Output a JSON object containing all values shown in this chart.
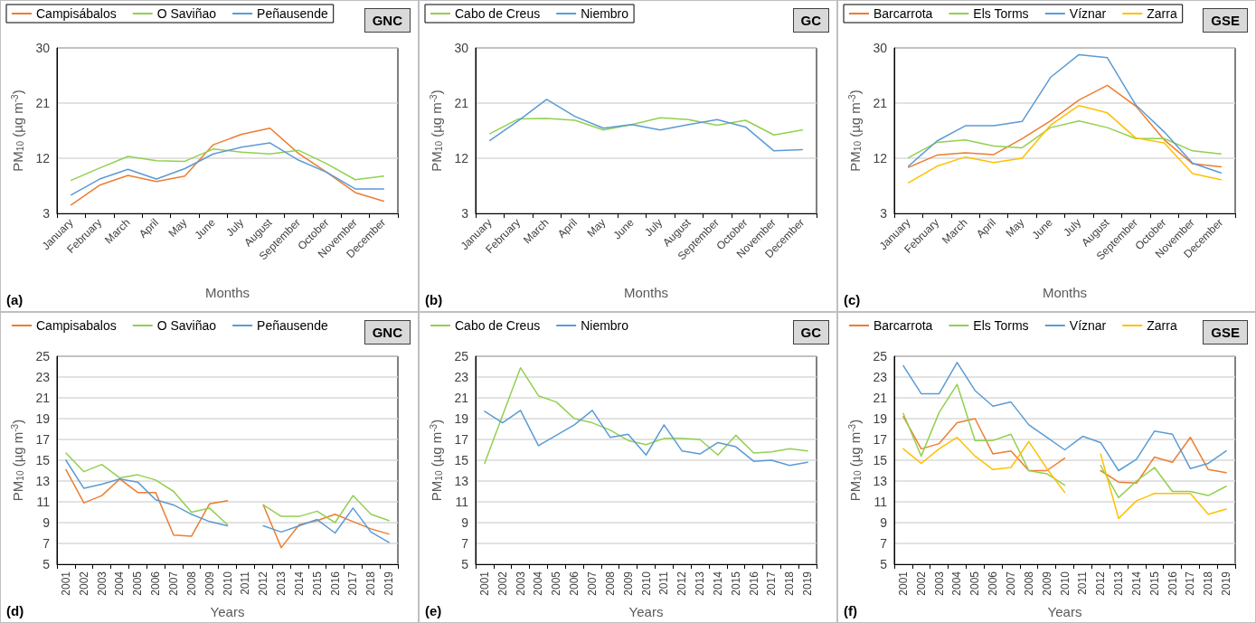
{
  "chart_data": [
    {
      "type": "line",
      "xlabel": "Months",
      "ylabel": "PM$_{10}$ (µg m$^{-3}$)",
      "annotations": [
        "(a)",
        "GNC"
      ],
      "categories": [
        "January",
        "February",
        "March",
        "April",
        "May",
        "June",
        "July",
        "August",
        "September",
        "October",
        "November",
        "December"
      ],
      "ylim": [
        3,
        30
      ],
      "yticks": [
        3,
        12,
        21,
        30
      ],
      "grid": "y",
      "legend": "top left",
      "marker": "none",
      "line_style": "solid",
      "series": [
        {
          "name": "Campisábalos",
          "color": "#ed7d31",
          "values": [
            4.4,
            7.6,
            9.2,
            8.2,
            9.1,
            14.2,
            15.9,
            16.9,
            12.8,
            9.7,
            6.4,
            5.0
          ]
        },
        {
          "name": "O Saviñao",
          "color": "#92d050",
          "values": [
            8.4,
            10.4,
            12.3,
            11.6,
            11.5,
            13.5,
            13.0,
            12.7,
            13.3,
            11.1,
            8.5,
            9.1
          ]
        },
        {
          "name": "Peñausende",
          "color": "#5b9bd5",
          "values": [
            6.0,
            8.6,
            10.2,
            8.6,
            10.3,
            12.7,
            13.8,
            14.5,
            11.7,
            9.7,
            7.0,
            7.0
          ]
        }
      ]
    },
    {
      "type": "line",
      "xlabel": "Months",
      "ylabel": "PM$_{10}$ (µg m$^{-3}$)",
      "annotations": [
        "(b)",
        "GC"
      ],
      "categories": [
        "January",
        "February",
        "March",
        "April",
        "May",
        "June",
        "July",
        "August",
        "September",
        "October",
        "November",
        "December"
      ],
      "ylim": [
        3,
        30
      ],
      "yticks": [
        3,
        12,
        21,
        30
      ],
      "grid": "y",
      "legend": "top left",
      "marker": "none",
      "line_style": "solid",
      "series": [
        {
          "name": "Cabo de Creus",
          "color": "#92d050",
          "values": [
            16.0,
            18.4,
            18.5,
            18.2,
            16.6,
            17.5,
            18.6,
            18.3,
            17.4,
            18.2,
            15.8,
            16.6
          ]
        },
        {
          "name": "Niembro",
          "color": "#5b9bd5",
          "values": [
            14.9,
            18.1,
            21.6,
            18.8,
            16.9,
            17.5,
            16.6,
            17.5,
            18.3,
            17.1,
            13.2,
            13.4
          ]
        }
      ]
    },
    {
      "type": "line",
      "xlabel": "Months",
      "ylabel": "PM$_{10}$ (µg m$^{-3}$)",
      "annotations": [
        "(c)",
        "GSE"
      ],
      "categories": [
        "January",
        "February",
        "March",
        "April",
        "May",
        "June",
        "July",
        "August",
        "September",
        "October",
        "November",
        "December"
      ],
      "ylim": [
        3,
        30
      ],
      "yticks": [
        3,
        12,
        21,
        30
      ],
      "grid": "y",
      "legend": "top left",
      "marker": "none",
      "line_style": "solid",
      "series": [
        {
          "name": "Barcarrota",
          "color": "#ed7d31",
          "values": [
            10.5,
            12.5,
            12.9,
            12.6,
            15.2,
            18.1,
            21.5,
            23.9,
            20.5,
            15.0,
            11.1,
            10.6
          ]
        },
        {
          "name": "Els Torms",
          "color": "#92d050",
          "values": [
            12.1,
            14.6,
            15.0,
            14.0,
            13.7,
            17.0,
            18.1,
            17.0,
            15.2,
            15.2,
            13.2,
            12.7
          ]
        },
        {
          "name": "Víznar",
          "color": "#5b9bd5",
          "values": [
            10.7,
            14.8,
            17.3,
            17.3,
            18.0,
            25.2,
            28.9,
            28.4,
            20.7,
            16.3,
            11.2,
            9.6
          ]
        },
        {
          "name": "Zarra",
          "color": "#ffc000",
          "values": [
            8.0,
            10.7,
            12.2,
            11.3,
            12.0,
            17.4,
            20.6,
            19.4,
            15.3,
            14.5,
            9.5,
            8.5
          ]
        }
      ]
    },
    {
      "type": "line",
      "xlabel": "Years",
      "ylabel": "PM$_{10}$ (µg m$^{-3}$)",
      "annotations": [
        "(d)",
        "GNC"
      ],
      "categories": [
        "2001",
        "2002",
        "2003",
        "2004",
        "2005",
        "2006",
        "2007",
        "2008",
        "2009",
        "2010",
        "2011",
        "2012",
        "2013",
        "2014",
        "2015",
        "2016",
        "2017",
        "2018",
        "2019"
      ],
      "ylim": [
        5,
        25
      ],
      "yticks": [
        5,
        7,
        9,
        11,
        13,
        15,
        17,
        19,
        21,
        23,
        25
      ],
      "grid": "y",
      "legend": "top left",
      "marker": "none",
      "line_style": "solid",
      "series": [
        {
          "name": "Campisabalos",
          "color": "#ed7d31",
          "values": [
            14.1,
            10.9,
            11.6,
            13.2,
            11.9,
            11.9,
            7.8,
            7.7,
            10.8,
            11.1,
            null,
            10.7,
            6.6,
            8.8,
            9.2,
            9.8,
            9.1,
            8.4,
            7.9
          ]
        },
        {
          "name": "O Saviñao",
          "color": "#92d050",
          "values": [
            15.7,
            13.9,
            14.6,
            13.3,
            13.6,
            13.1,
            12.0,
            10.0,
            10.4,
            8.8,
            null,
            10.7,
            9.6,
            9.6,
            10.1,
            9.0,
            11.6,
            9.8,
            9.2
          ]
        },
        {
          "name": "Peñausende",
          "color": "#5b9bd5",
          "values": [
            15.0,
            12.3,
            12.7,
            13.2,
            12.9,
            11.2,
            10.7,
            9.8,
            9.1,
            8.7,
            null,
            8.7,
            8.1,
            8.7,
            9.3,
            8.0,
            10.4,
            8.1,
            7.1
          ]
        }
      ]
    },
    {
      "type": "line",
      "xlabel": "Years",
      "ylabel": "PM$_{10}$ (µg m$^{-3}$)",
      "annotations": [
        "(e)",
        "GC"
      ],
      "categories": [
        "2001",
        "2002",
        "2003",
        "2004",
        "2005",
        "2006",
        "2007",
        "2008",
        "2009",
        "2010",
        "2011",
        "2012",
        "2013",
        "2014",
        "2015",
        "2016",
        "2017",
        "2018",
        "2019"
      ],
      "ylim": [
        5,
        25
      ],
      "yticks": [
        5,
        7,
        9,
        11,
        13,
        15,
        17,
        19,
        21,
        23,
        25
      ],
      "grid": "y",
      "legend": "top left",
      "marker": "none",
      "line_style": "solid",
      "series": [
        {
          "name": "Cabo de Creus",
          "color": "#92d050",
          "values": [
            14.7,
            19.3,
            23.9,
            21.2,
            20.6,
            19.0,
            18.6,
            17.9,
            16.9,
            16.5,
            17.1,
            17.1,
            17.0,
            15.5,
            17.4,
            15.7,
            15.8,
            16.1,
            15.9
          ]
        },
        {
          "name": "Niembro",
          "color": "#5b9bd5",
          "values": [
            19.7,
            18.6,
            19.8,
            16.4,
            17.4,
            18.4,
            19.8,
            17.2,
            17.5,
            15.5,
            18.4,
            15.9,
            15.6,
            16.7,
            16.3,
            14.9,
            15.0,
            14.5,
            14.8
          ]
        }
      ]
    },
    {
      "type": "line",
      "xlabel": "Years",
      "ylabel": "PM$_{10}$ (µg m$^{-3}$)",
      "annotations": [
        "(f)",
        "GSE"
      ],
      "categories": [
        "2001",
        "2002",
        "2003",
        "2004",
        "2005",
        "2006",
        "2007",
        "2008",
        "2009",
        "2010",
        "2011",
        "2012",
        "2013",
        "2014",
        "2015",
        "2016",
        "2017",
        "2018",
        "2019"
      ],
      "ylim": [
        5,
        25
      ],
      "yticks": [
        5,
        7,
        9,
        11,
        13,
        15,
        17,
        19,
        21,
        23,
        25
      ],
      "grid": "y",
      "legend": "top left",
      "marker": "none",
      "line_style": "solid",
      "series": [
        {
          "name": "Barcarrota",
          "color": "#ed7d31",
          "values": [
            19.2,
            16.1,
            16.6,
            18.6,
            19.0,
            15.6,
            15.9,
            14.0,
            14.0,
            15.2,
            null,
            14.0,
            12.9,
            12.8,
            15.3,
            14.8,
            17.2,
            14.1,
            13.8
          ]
        },
        {
          "name": "Els Torms",
          "color": "#92d050",
          "values": [
            19.5,
            15.4,
            19.6,
            22.3,
            16.9,
            16.9,
            17.5,
            14.0,
            13.7,
            12.6,
            null,
            14.5,
            11.4,
            13.0,
            14.3,
            12.0,
            12.0,
            11.6,
            12.5
          ]
        },
        {
          "name": "Víznar",
          "color": "#5b9bd5",
          "values": [
            24.1,
            21.4,
            21.4,
            24.4,
            21.7,
            20.2,
            20.6,
            18.4,
            17.2,
            16.0,
            17.3,
            16.7,
            14.0,
            15.1,
            17.8,
            17.5,
            14.2,
            14.7,
            15.9
          ]
        },
        {
          "name": "Zarra",
          "color": "#ffc000",
          "values": [
            16.1,
            14.7,
            16.1,
            17.2,
            15.4,
            14.1,
            14.3,
            16.8,
            14.2,
            11.9,
            null,
            15.6,
            9.4,
            11.1,
            11.8,
            11.8,
            11.8,
            9.8,
            10.3
          ]
        }
      ]
    }
  ]
}
